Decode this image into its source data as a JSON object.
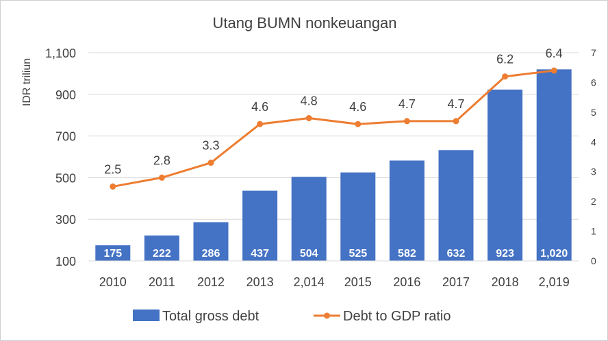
{
  "chart_data": {
    "type": "bar+line",
    "title": "Utang BUMN nonkeuangan",
    "ylabel": "IDR triliun",
    "categories": [
      "2010",
      "2011",
      "2012",
      "2013",
      "2,014",
      "2015",
      "2016",
      "2017",
      "2018",
      "2,019"
    ],
    "series": [
      {
        "name": "Total gross debt",
        "type": "bar",
        "axis": "left",
        "color": "#4472C4",
        "values": [
          175,
          222,
          286,
          437,
          504,
          525,
          582,
          632,
          923,
          1020
        ],
        "labels": [
          "175",
          "222",
          "286",
          "437",
          "504",
          "525",
          "582",
          "632",
          "923",
          "1,020"
        ]
      },
      {
        "name": "Debt to GDP ratio",
        "type": "line",
        "axis": "right",
        "color": "#ED7D31",
        "values": [
          2.5,
          2.8,
          3.3,
          4.6,
          4.8,
          4.6,
          4.7,
          4.7,
          6.2,
          6.4
        ],
        "labels": [
          "2.5",
          "2.8",
          "3.3",
          "4.6",
          "4.8",
          "4.6",
          "4.7",
          "4.7",
          "6.2",
          "6.4"
        ]
      }
    ],
    "y_left": {
      "min": 100,
      "max": 1100,
      "ticks": [
        100,
        300,
        500,
        700,
        900,
        1100
      ],
      "tick_labels": [
        "100",
        "300",
        "500",
        "700",
        "900",
        "1,100"
      ]
    },
    "y_right": {
      "min": 0,
      "max": 7,
      "ticks": [
        0,
        1,
        2,
        3,
        4,
        5,
        6,
        7
      ],
      "tick_labels": [
        "0",
        "1",
        "2",
        "3",
        "4",
        "5",
        "6",
        "7"
      ]
    },
    "grid": true,
    "legend_position": "bottom"
  }
}
